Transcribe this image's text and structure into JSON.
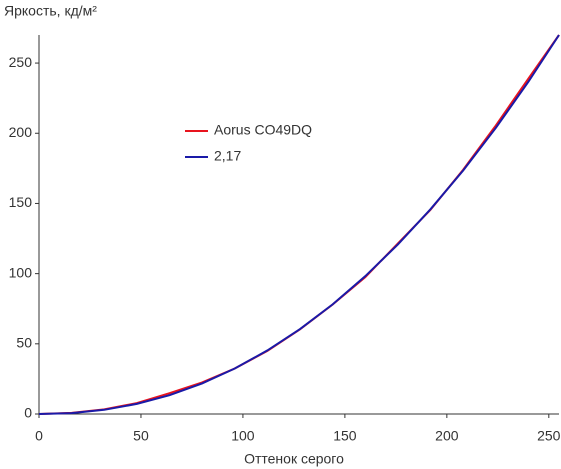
{
  "chart_data": {
    "type": "line",
    "y_label": "Яркость, кд/м²",
    "x_label": "Оттенок серого",
    "x": [
      0,
      16,
      32,
      48,
      64,
      80,
      96,
      112,
      128,
      144,
      160,
      176,
      192,
      208,
      224,
      240,
      255
    ],
    "series": [
      {
        "name": "Aorus CO49DQ",
        "color": "#e8141e",
        "values": [
          0,
          0.8,
          3.3,
          7.8,
          14.8,
          22.5,
          32.4,
          45.0,
          60.3,
          78.0,
          97.5,
          121.5,
          145.5,
          174.0,
          205.5,
          239.0,
          270
        ]
      },
      {
        "name": "2,17",
        "color": "#1a1aa8",
        "values": [
          0,
          0.66,
          2.99,
          7.2,
          13.4,
          21.8,
          32.4,
          45.3,
          60.5,
          78.1,
          98.2,
          120.8,
          145.9,
          173.5,
          203.8,
          236.7,
          270
        ]
      }
    ],
    "xlim": [
      0,
      255
    ],
    "ylim": [
      0,
      270
    ],
    "xticks": [
      0,
      50,
      100,
      150,
      200,
      250
    ],
    "yticks": [
      0,
      50,
      100,
      150,
      200,
      250
    ],
    "grid": false
  }
}
